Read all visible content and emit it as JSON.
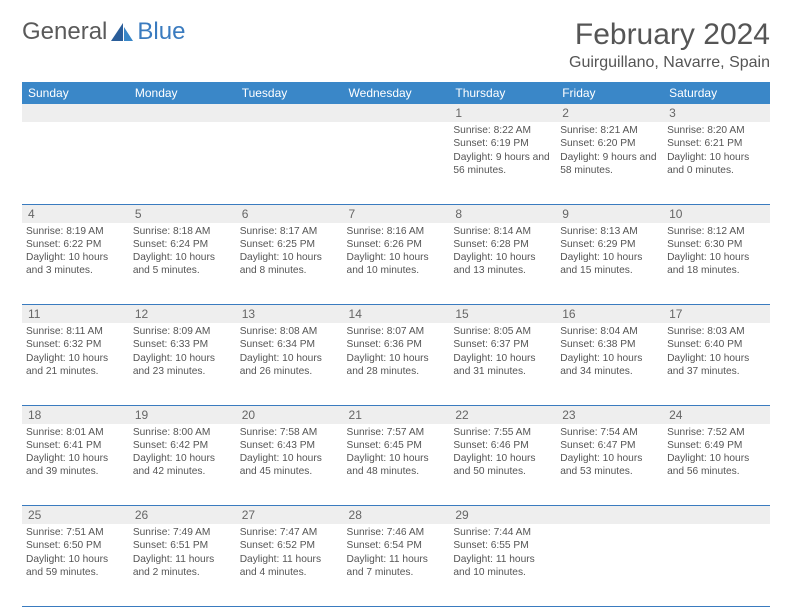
{
  "logo": {
    "text1": "General",
    "text2": "Blue"
  },
  "title": "February 2024",
  "location": "Guirguillano, Navarre, Spain",
  "colors": {
    "header_bg": "#3a87c8",
    "border": "#3a7bbf",
    "daynum_bg": "#eeeeee",
    "text": "#555555",
    "logo_gray": "#5a5a5a",
    "logo_blue": "#3a7bbf"
  },
  "weekdays": [
    "Sunday",
    "Monday",
    "Tuesday",
    "Wednesday",
    "Thursday",
    "Friday",
    "Saturday"
  ],
  "weeks": [
    {
      "nums": [
        "",
        "",
        "",
        "",
        "1",
        "2",
        "3"
      ],
      "cells": [
        null,
        null,
        null,
        null,
        {
          "sunrise": "8:22 AM",
          "sunset": "6:19 PM",
          "daylight": "9 hours and 56 minutes."
        },
        {
          "sunrise": "8:21 AM",
          "sunset": "6:20 PM",
          "daylight": "9 hours and 58 minutes."
        },
        {
          "sunrise": "8:20 AM",
          "sunset": "6:21 PM",
          "daylight": "10 hours and 0 minutes."
        }
      ]
    },
    {
      "nums": [
        "4",
        "5",
        "6",
        "7",
        "8",
        "9",
        "10"
      ],
      "cells": [
        {
          "sunrise": "8:19 AM",
          "sunset": "6:22 PM",
          "daylight": "10 hours and 3 minutes."
        },
        {
          "sunrise": "8:18 AM",
          "sunset": "6:24 PM",
          "daylight": "10 hours and 5 minutes."
        },
        {
          "sunrise": "8:17 AM",
          "sunset": "6:25 PM",
          "daylight": "10 hours and 8 minutes."
        },
        {
          "sunrise": "8:16 AM",
          "sunset": "6:26 PM",
          "daylight": "10 hours and 10 minutes."
        },
        {
          "sunrise": "8:14 AM",
          "sunset": "6:28 PM",
          "daylight": "10 hours and 13 minutes."
        },
        {
          "sunrise": "8:13 AM",
          "sunset": "6:29 PM",
          "daylight": "10 hours and 15 minutes."
        },
        {
          "sunrise": "8:12 AM",
          "sunset": "6:30 PM",
          "daylight": "10 hours and 18 minutes."
        }
      ]
    },
    {
      "nums": [
        "11",
        "12",
        "13",
        "14",
        "15",
        "16",
        "17"
      ],
      "cells": [
        {
          "sunrise": "8:11 AM",
          "sunset": "6:32 PM",
          "daylight": "10 hours and 21 minutes."
        },
        {
          "sunrise": "8:09 AM",
          "sunset": "6:33 PM",
          "daylight": "10 hours and 23 minutes."
        },
        {
          "sunrise": "8:08 AM",
          "sunset": "6:34 PM",
          "daylight": "10 hours and 26 minutes."
        },
        {
          "sunrise": "8:07 AM",
          "sunset": "6:36 PM",
          "daylight": "10 hours and 28 minutes."
        },
        {
          "sunrise": "8:05 AM",
          "sunset": "6:37 PM",
          "daylight": "10 hours and 31 minutes."
        },
        {
          "sunrise": "8:04 AM",
          "sunset": "6:38 PM",
          "daylight": "10 hours and 34 minutes."
        },
        {
          "sunrise": "8:03 AM",
          "sunset": "6:40 PM",
          "daylight": "10 hours and 37 minutes."
        }
      ]
    },
    {
      "nums": [
        "18",
        "19",
        "20",
        "21",
        "22",
        "23",
        "24"
      ],
      "cells": [
        {
          "sunrise": "8:01 AM",
          "sunset": "6:41 PM",
          "daylight": "10 hours and 39 minutes."
        },
        {
          "sunrise": "8:00 AM",
          "sunset": "6:42 PM",
          "daylight": "10 hours and 42 minutes."
        },
        {
          "sunrise": "7:58 AM",
          "sunset": "6:43 PM",
          "daylight": "10 hours and 45 minutes."
        },
        {
          "sunrise": "7:57 AM",
          "sunset": "6:45 PM",
          "daylight": "10 hours and 48 minutes."
        },
        {
          "sunrise": "7:55 AM",
          "sunset": "6:46 PM",
          "daylight": "10 hours and 50 minutes."
        },
        {
          "sunrise": "7:54 AM",
          "sunset": "6:47 PM",
          "daylight": "10 hours and 53 minutes."
        },
        {
          "sunrise": "7:52 AM",
          "sunset": "6:49 PM",
          "daylight": "10 hours and 56 minutes."
        }
      ]
    },
    {
      "nums": [
        "25",
        "26",
        "27",
        "28",
        "29",
        "",
        ""
      ],
      "cells": [
        {
          "sunrise": "7:51 AM",
          "sunset": "6:50 PM",
          "daylight": "10 hours and 59 minutes."
        },
        {
          "sunrise": "7:49 AM",
          "sunset": "6:51 PM",
          "daylight": "11 hours and 2 minutes."
        },
        {
          "sunrise": "7:47 AM",
          "sunset": "6:52 PM",
          "daylight": "11 hours and 4 minutes."
        },
        {
          "sunrise": "7:46 AM",
          "sunset": "6:54 PM",
          "daylight": "11 hours and 7 minutes."
        },
        {
          "sunrise": "7:44 AM",
          "sunset": "6:55 PM",
          "daylight": "11 hours and 10 minutes."
        },
        null,
        null
      ]
    }
  ],
  "labels": {
    "sunrise": "Sunrise:",
    "sunset": "Sunset:",
    "daylight": "Daylight:"
  }
}
